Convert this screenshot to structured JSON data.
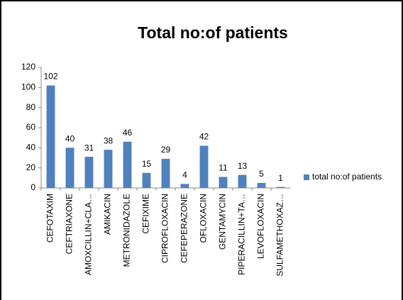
{
  "chart_data": {
    "type": "bar",
    "title": "Total no:of patients",
    "categories": [
      "CEFOTAXIM",
      "CEFTRIAXONE",
      "AMOXCILLIN+CLA…",
      "AMIKACIN",
      "METRONIDAZOLE",
      "CEFIXIME",
      "CIPROFLOXACIN",
      "CEFEPERAZONE",
      "OFLOXACIN",
      "GENTAMYCIN",
      "PIPERACILLIN+TA…",
      "LEVOFLOXACIN",
      "SULFAMETHOXAZ…"
    ],
    "series": [
      {
        "name": "total no:of patients",
        "color": "#4f81bd",
        "values": [
          102,
          40,
          31,
          38,
          46,
          15,
          29,
          4,
          42,
          11,
          13,
          5,
          1
        ]
      }
    ],
    "ylim": [
      0,
      120
    ],
    "yticks": [
      0,
      20,
      40,
      60,
      80,
      100,
      120
    ],
    "grid": false,
    "legend": "right"
  }
}
